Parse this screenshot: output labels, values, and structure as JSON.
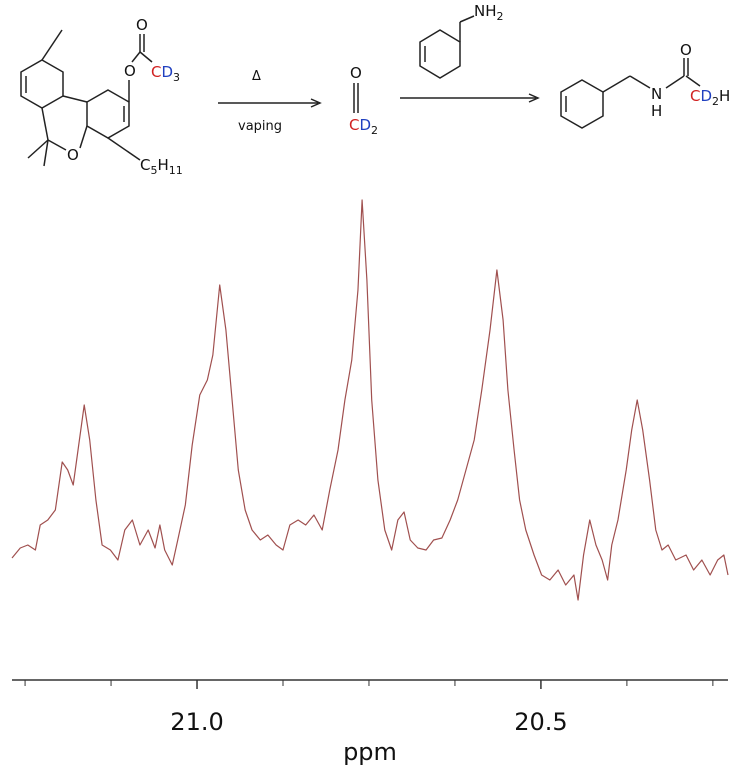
{
  "scheme": {
    "reactant": {
      "ring_o": "O",
      "ester_o": "O",
      "carbonyl_o": "O",
      "cd3_c": "C",
      "cd3_d": "D",
      "cd3_sub": "3",
      "pentyl_c": "C",
      "pentyl_sub1": "5",
      "pentyl_h": "H",
      "pentyl_sub2": "11"
    },
    "arrow1_top": "Δ",
    "arrow1_bottom": "vaping",
    "ketene": {
      "o": "O",
      "c": "C",
      "d": "D",
      "sub": "2"
    },
    "amine": {
      "nh": "NH",
      "sub": "2"
    },
    "product": {
      "o": "O",
      "n": "N",
      "h": "H",
      "c": "C",
      "d": "D",
      "sub": "2",
      "h2": "H"
    }
  },
  "chart_data": {
    "type": "line",
    "x_label": "ppm",
    "xlim": [
      21.269,
      20.228
    ],
    "ylim": [
      0,
      430
    ],
    "xticks": [
      {
        "value": 21.0,
        "label": "21.0"
      },
      {
        "value": 20.5,
        "label": "20.5"
      }
    ],
    "xminorticks": [
      21.25,
      21.125,
      20.875,
      20.75,
      20.625,
      20.375,
      20.25
    ],
    "series": [
      {
        "color": "#a0504f",
        "x": [
          21.269,
          21.257,
          21.246,
          21.235,
          21.228,
          21.217,
          21.206,
          21.196,
          21.188,
          21.18,
          21.173,
          21.164,
          21.156,
          21.147,
          21.138,
          21.126,
          21.115,
          21.105,
          21.094,
          21.083,
          21.071,
          21.061,
          21.054,
          21.047,
          21.036,
          21.028,
          21.017,
          21.007,
          20.996,
          20.985,
          20.977,
          20.967,
          20.958,
          20.949,
          20.94,
          20.93,
          20.92,
          20.908,
          20.897,
          20.885,
          20.875,
          20.865,
          20.853,
          20.842,
          20.83,
          20.818,
          20.807,
          20.795,
          20.785,
          20.775,
          20.766,
          20.76,
          20.753,
          20.746,
          20.737,
          20.727,
          20.717,
          20.708,
          20.699,
          20.69,
          20.679,
          20.667,
          20.656,
          20.644,
          20.632,
          20.621,
          20.609,
          20.597,
          20.586,
          20.574,
          20.564,
          20.555,
          20.548,
          20.539,
          20.531,
          20.522,
          20.51,
          20.499,
          20.487,
          20.475,
          20.464,
          20.452,
          20.446,
          20.438,
          20.429,
          20.42,
          20.411,
          20.403,
          20.397,
          20.388,
          20.376,
          20.368,
          20.36,
          20.352,
          20.342,
          20.333,
          20.324,
          20.315,
          20.304,
          20.289,
          20.278,
          20.266,
          20.254,
          20.243,
          20.234,
          20.228
        ],
        "values": [
          62,
          72,
          75,
          70,
          95,
          100,
          110,
          158,
          150,
          135,
          170,
          215,
          180,
          120,
          75,
          70,
          60,
          90,
          100,
          75,
          90,
          72,
          95,
          70,
          55,
          80,
          115,
          175,
          225,
          240,
          265,
          335,
          290,
          220,
          150,
          110,
          90,
          80,
          85,
          75,
          70,
          95,
          100,
          95,
          105,
          90,
          130,
          170,
          220,
          260,
          330,
          420,
          340,
          220,
          140,
          90,
          70,
          100,
          108,
          80,
          72,
          70,
          80,
          82,
          100,
          120,
          150,
          180,
          230,
          290,
          350,
          300,
          230,
          170,
          120,
          90,
          65,
          45,
          40,
          50,
          35,
          45,
          20,
          65,
          100,
          75,
          60,
          40,
          75,
          100,
          150,
          190,
          220,
          190,
          140,
          90,
          70,
          75,
          60,
          65,
          50,
          60,
          45,
          60,
          65,
          45
        ]
      }
    ]
  }
}
